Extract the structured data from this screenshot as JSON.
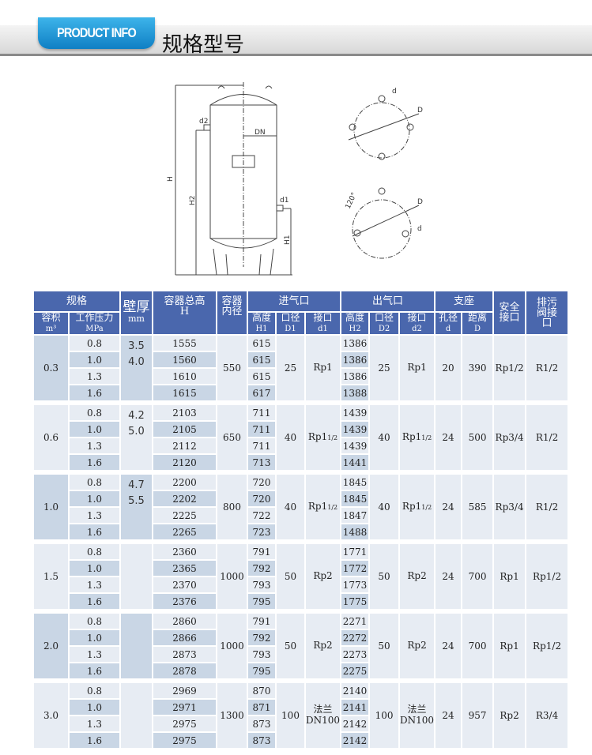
{
  "header": {
    "badge": "PRODUCT INFO",
    "title": "规格型号"
  },
  "diagram": {
    "labels": {
      "d2": "d2",
      "dn": "DN",
      "h": "H",
      "h2": "H2",
      "d1": "d1",
      "h1": "H1",
      "D_top": "D",
      "d_top": "d",
      "D_bottom": "D",
      "d_bottom": "d",
      "angle": "120°"
    }
  },
  "table": {
    "headers": {
      "spec": "规格",
      "thickness": "壁厚",
      "thickness_unit": "mm",
      "total_height": "容器总高",
      "total_height_sym": "H",
      "inner_dia": "容器内径",
      "inlet": "进气口",
      "outlet": "出气口",
      "support": "支座",
      "safety": "安全接口",
      "drain": "排污阀接口",
      "volume": "容积",
      "volume_unit": "m³",
      "pressure": "工作压力",
      "pressure_unit": "MPa",
      "in_height": "高度",
      "in_height_sym": "H1",
      "in_dia": "口径",
      "in_dia_sym": "D1",
      "in_port": "接口",
      "in_port_sym": "d1",
      "out_height": "高度",
      "out_height_sym": "H2",
      "out_dia": "口径",
      "out_dia_sym": "D2",
      "out_port": "接口",
      "out_port_sym": "d2",
      "hole": "孔径",
      "hole_sym": "d",
      "dist": "距离",
      "dist_sym": "D"
    },
    "groups": [
      {
        "volume": "0.3",
        "thickness": [
          "3.5",
          "4.0"
        ],
        "inner": "550",
        "d1": "25",
        "p1": "Rp1",
        "p1_sub": "",
        "d2": "25",
        "p2": "Rp1",
        "p2_sub": "",
        "hole": "20",
        "dist": "390",
        "safety": "Rp1/2",
        "drain": "R1/2",
        "rows": [
          [
            "0.8",
            "1555",
            "615",
            "1386"
          ],
          [
            "1.0",
            "1560",
            "615",
            "1386"
          ],
          [
            "1.3",
            "1610",
            "615",
            "1386"
          ],
          [
            "1.6",
            "1615",
            "617",
            "1388"
          ]
        ]
      },
      {
        "volume": "0.6",
        "thickness": [
          "4.2",
          "5.0"
        ],
        "inner": "650",
        "d1": "40",
        "p1": "Rp1",
        "p1_sub": "1/2",
        "d2": "40",
        "p2": "Rp1",
        "p2_sub": "1/2",
        "hole": "24",
        "dist": "500",
        "safety": "Rp3/4",
        "drain": "R1/2",
        "rows": [
          [
            "0.8",
            "2103",
            "711",
            "1439"
          ],
          [
            "1.0",
            "2105",
            "711",
            "1439"
          ],
          [
            "1.3",
            "2112",
            "711",
            "1439"
          ],
          [
            "1.6",
            "2120",
            "713",
            "1441"
          ]
        ]
      },
      {
        "volume": "1.0",
        "thickness": [
          "4.7",
          "5.5"
        ],
        "inner": "800",
        "d1": "40",
        "p1": "Rp1",
        "p1_sub": "1/2",
        "d2": "40",
        "p2": "Rp1",
        "p2_sub": "1/2",
        "hole": "24",
        "dist": "585",
        "safety": "Rp3/4",
        "drain": "R1/2",
        "rows": [
          [
            "0.8",
            "2200",
            "720",
            "1845"
          ],
          [
            "1.0",
            "2202",
            "720",
            "1845"
          ],
          [
            "1.3",
            "2225",
            "722",
            "1847"
          ],
          [
            "1.6",
            "2265",
            "723",
            "1488"
          ]
        ]
      },
      {
        "volume": "1.5",
        "thickness": [],
        "inner": "1000",
        "d1": "50",
        "p1": "Rp2",
        "p1_sub": "",
        "d2": "50",
        "p2": "Rp2",
        "p2_sub": "",
        "hole": "24",
        "dist": "700",
        "safety": "Rp1",
        "drain": "Rp1/2",
        "rows": [
          [
            "0.8",
            "2360",
            "791",
            "1771"
          ],
          [
            "1.0",
            "2365",
            "792",
            "1772"
          ],
          [
            "1.3",
            "2370",
            "793",
            "1773"
          ],
          [
            "1.6",
            "2376",
            "795",
            "1775"
          ]
        ]
      },
      {
        "volume": "2.0",
        "thickness": [],
        "inner": "1000",
        "d1": "50",
        "p1": "Rp2",
        "p1_sub": "",
        "d2": "50",
        "p2": "Rp2",
        "p2_sub": "",
        "hole": "24",
        "dist": "700",
        "safety": "Rp1",
        "drain": "Rp1/2",
        "rows": [
          [
            "0.8",
            "2860",
            "791",
            "2271"
          ],
          [
            "1.0",
            "2866",
            "792",
            "2272"
          ],
          [
            "1.3",
            "2873",
            "793",
            "2273"
          ],
          [
            "1.6",
            "2878",
            "795",
            "2275"
          ]
        ]
      },
      {
        "volume": "3.0",
        "thickness": [],
        "inner": "1300",
        "d1": "100",
        "p1": "法兰\nDN100",
        "p1_sub": "",
        "d2": "100",
        "p2": "法兰\nDN100",
        "p2_sub": "",
        "hole": "24",
        "dist": "957",
        "safety": "Rp2",
        "drain": "R3/4",
        "rows": [
          [
            "0.8",
            "2969",
            "870",
            "2140"
          ],
          [
            "1.0",
            "2971",
            "871",
            "2141"
          ],
          [
            "1.3",
            "2975",
            "873",
            "2142"
          ],
          [
            "1.6",
            "2975",
            "873",
            "2142"
          ]
        ]
      }
    ]
  }
}
